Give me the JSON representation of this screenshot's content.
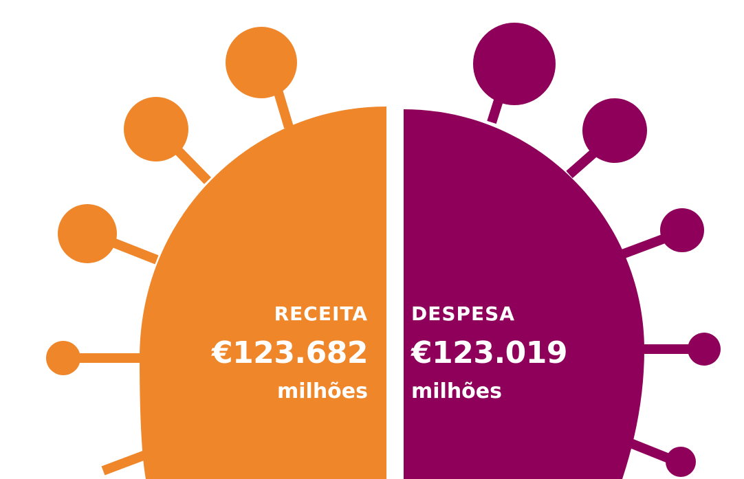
{
  "colors": {
    "receita": "#F0862A",
    "despesa": "#8E0059",
    "background": "#FFFFFF",
    "text": "#FFFFFF"
  },
  "receita": {
    "label": "RECEITA",
    "amount": "€123.682",
    "unit": "milhões"
  },
  "despesa": {
    "label": "DESPESA",
    "amount": "€123.019",
    "unit": "milhões"
  }
}
